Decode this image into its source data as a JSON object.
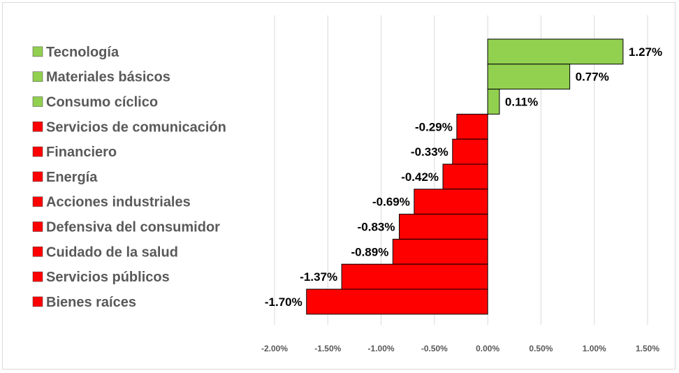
{
  "chart_data": {
    "type": "bar",
    "orientation": "horizontal",
    "title": "",
    "xlabel": "",
    "ylabel": "",
    "categories": [
      "Tecnología",
      "Materiales básicos",
      "Consumo cíclico",
      "Servicios de comunicación",
      "Financiero",
      "Energía",
      "Acciones industriales",
      "Defensiva del consumidor",
      "Cuidado de la salud",
      "Servicios públicos",
      "Bienes raíces"
    ],
    "values": [
      1.27,
      0.77,
      0.11,
      -0.29,
      -0.33,
      -0.42,
      -0.69,
      -0.83,
      -0.89,
      -1.37,
      -1.7
    ],
    "data_labels": [
      "1.27%",
      "0.77%",
      "0.11%",
      "-0.29%",
      "-0.33%",
      "-0.42%",
      "-0.69%",
      "-0.83%",
      "-0.89%",
      "-1.37%",
      "-1.70%"
    ],
    "xlim": [
      -2.0,
      1.5
    ],
    "xticks": [
      -2.0,
      -1.5,
      -1.0,
      -0.5,
      0.0,
      0.5,
      1.0,
      1.5
    ],
    "xtick_labels": [
      "-2.00%",
      "-1.50%",
      "-1.00%",
      "-0.50%",
      "0.00%",
      "0.50%",
      "1.00%",
      "1.50%"
    ],
    "grid": true,
    "legend_position": "left",
    "colors": {
      "positive": "#92d050",
      "negative": "#ff0000",
      "bar_border": "#000000",
      "grid": "#d9d9d9",
      "text": "#595959"
    }
  }
}
